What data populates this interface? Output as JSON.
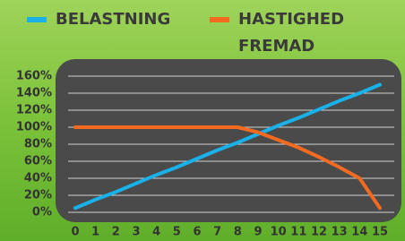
{
  "chart_data": {
    "type": "line",
    "x": [
      0,
      1,
      2,
      3,
      4,
      5,
      6,
      7,
      8,
      9,
      10,
      11,
      12,
      13,
      14,
      15
    ],
    "series": [
      {
        "name": "BELASTNING",
        "color": "#1ab0e8",
        "values": [
          5,
          15,
          24,
          34,
          44,
          53,
          63,
          73,
          82,
          92,
          102,
          111,
          121,
          131,
          140,
          150
        ]
      },
      {
        "name": "HASTIGHED FREMAD",
        "color": "#f26b21",
        "values": [
          100,
          100,
          100,
          100,
          100,
          100,
          100,
          100,
          100,
          94,
          85,
          76,
          65,
          53,
          40,
          5
        ]
      }
    ],
    "xlim": [
      0,
      15
    ],
    "xticks": [
      0,
      1,
      2,
      3,
      4,
      5,
      6,
      7,
      8,
      9,
      10,
      11,
      12,
      13,
      14,
      15
    ],
    "ylim": [
      0,
      160
    ],
    "yticks": [
      {
        "value": 0,
        "label": "0%"
      },
      {
        "value": 20,
        "label": "20%"
      },
      {
        "value": 40,
        "label": "40%"
      },
      {
        "value": 60,
        "label": "60%"
      },
      {
        "value": 80,
        "label": "80%"
      },
      {
        "value": 100,
        "label": "100%"
      },
      {
        "value": 120,
        "label": "120%"
      },
      {
        "value": 140,
        "label": "140%"
      },
      {
        "value": 160,
        "label": "160%"
      }
    ],
    "grid": true
  }
}
